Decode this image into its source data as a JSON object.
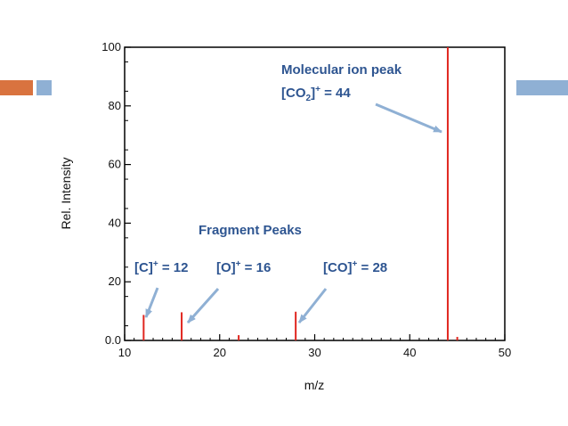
{
  "colors": {
    "accent_orange": "#d9733f",
    "accent_blue": "#8fb0d4",
    "peak": "#e0261f",
    "annotation": "#2e5591"
  },
  "chart_data": {
    "type": "bar",
    "title": "",
    "xlabel": "m/z",
    "ylabel": "Rel. Intensity",
    "xlim": [
      10,
      50
    ],
    "ylim": [
      0,
      100
    ],
    "x_ticks": [
      "10",
      "20",
      "30",
      "40",
      "50"
    ],
    "y_ticks": [
      "0.0",
      "20",
      "40",
      "60",
      "80",
      "100"
    ],
    "grid": false,
    "peaks": [
      {
        "mz": 12,
        "intensity": 8.7
      },
      {
        "mz": 16,
        "intensity": 9.6
      },
      {
        "mz": 22,
        "intensity": 1.8
      },
      {
        "mz": 28,
        "intensity": 9.8
      },
      {
        "mz": 44,
        "intensity": 100
      },
      {
        "mz": 45,
        "intensity": 1.2
      }
    ],
    "annotations": {
      "molecular_ion_title": "Molecular ion peak",
      "molecular_ion_formula_prefix": "[CO",
      "molecular_ion_formula_sub": "2",
      "molecular_ion_formula_bracket": "]",
      "molecular_ion_formula_sup": "+",
      "molecular_ion_formula_value": " = 44",
      "fragment_title": "Fragment Peaks",
      "c_prefix": "[C]",
      "c_sup": "+",
      "c_value": " = 12",
      "o_prefix": "[O]",
      "o_sup": "+",
      "o_value": " = 16",
      "co_prefix": "[CO]",
      "co_sup": "+",
      "co_value": " = 28"
    }
  }
}
